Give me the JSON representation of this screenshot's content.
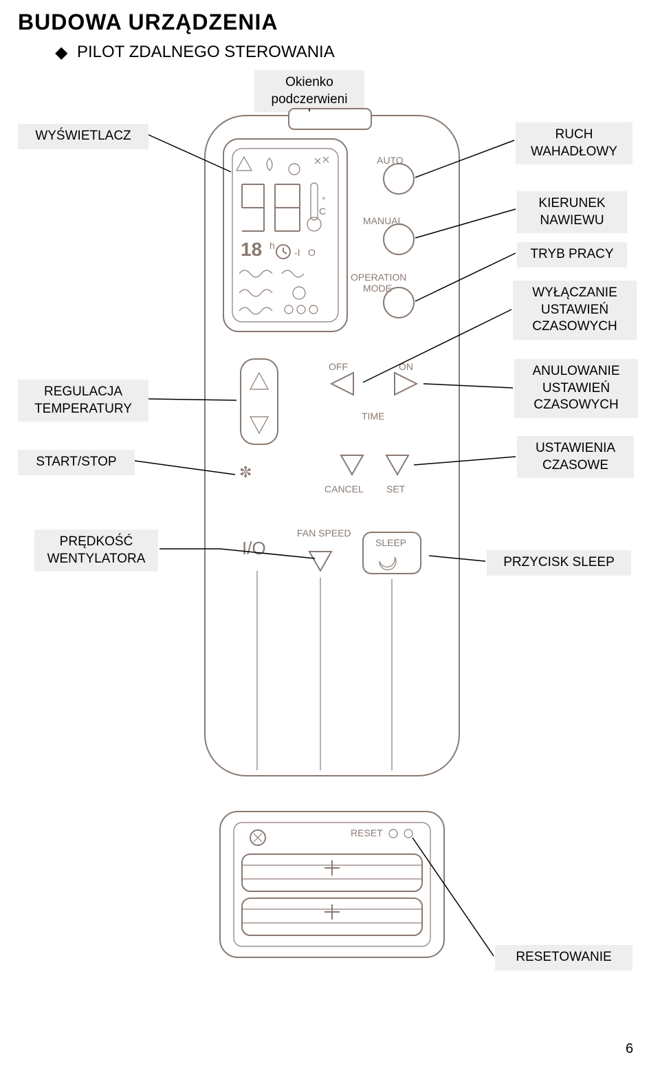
{
  "page": {
    "heading": "BUDOWA URZĄDZENIA",
    "subtitle": "PILOT ZDALNEGO STEROWANIA",
    "page_number": "6"
  },
  "labels": {
    "okienko": "Okienko\npodczerwieni",
    "wyswietlacz": "WYŚWIETLACZ",
    "ruch_wahadlowy": "RUCH\nWAHADŁOWY",
    "kierunek_nawiewu": "KIERUNEK\nNAWIEWU",
    "tryb_pracy": "TRYB PRACY",
    "wylaczanie": "WYŁĄCZANIE\nUSTAWIEŃ\nCZASOWYCH",
    "anulowanie": "ANULOWANIE\nUSTAWIEŃ\nCZASOWYCH",
    "regulacja": "REGULACJA\nTEMPERATURY",
    "start_stop": "START/STOP",
    "ustawienia_czasowe": "USTAWIENIA\nCZASOWE",
    "predkosc": "PRĘDKOŚĆ\nWENTYLATORA",
    "sleep": "PRZYCISK SLEEP",
    "reset": "RESETOWANIE"
  },
  "diagram_text": {
    "auto": "AUTO",
    "manual": "MANUAL",
    "op_mode": "OPERATION\nMODE",
    "off": "OFF",
    "on": "ON",
    "time": "TIME",
    "cancel": "CANCEL",
    "set": "SET",
    "fan_speed": "FAN SPEED",
    "sleep": "SLEEP",
    "io": "I/O",
    "reset": "RESET"
  },
  "style": {
    "label_bg": "#eeeeee",
    "label_fontsize": 19,
    "heading_fontsize": 32,
    "stroke_color": "#8a7a72",
    "page_bg": "#ffffff"
  }
}
